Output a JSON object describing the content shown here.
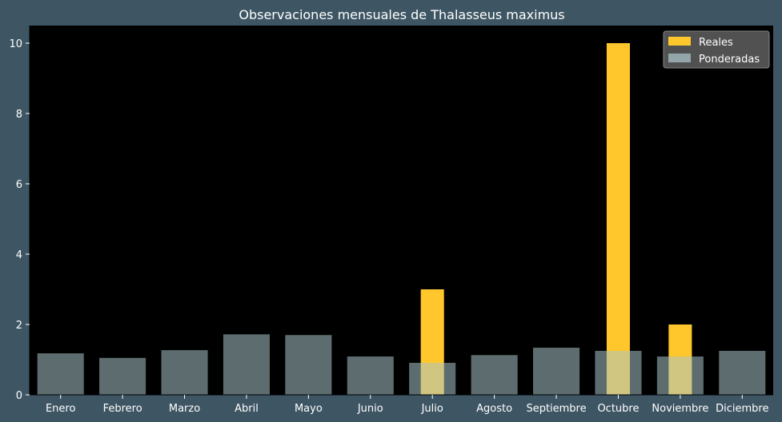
{
  "chart_data": {
    "type": "bar",
    "title": "Observaciones mensuales de Thalasseus maximus",
    "xlabel": "",
    "ylabel": "",
    "categories": [
      "Enero",
      "Febrero",
      "Marzo",
      "Abril",
      "Mayo",
      "Junio",
      "Julio",
      "Agosto",
      "Septiembre",
      "Octubre",
      "Noviembre",
      "Diciembre"
    ],
    "series": [
      {
        "name": "Reales",
        "color": "#ffc72c",
        "values": [
          0,
          0,
          0,
          0,
          0,
          0,
          3,
          0,
          0,
          10,
          2,
          0
        ]
      },
      {
        "name": "Ponderadas",
        "color": "#a9c4c8",
        "opacity": 0.55,
        "values": [
          1.18,
          1.05,
          1.27,
          1.72,
          1.7,
          1.09,
          0.91,
          1.13,
          1.34,
          1.25,
          1.09,
          1.25
        ]
      }
    ],
    "ylim": [
      0,
      10.5
    ],
    "yticks": [
      0,
      2,
      4,
      6,
      8,
      10
    ],
    "grid": false,
    "legend_position": "top-right",
    "colors": {
      "figure_background": "#3e5664",
      "plot_background": "#000000",
      "text": "#ffffff",
      "legend_background": "#555555"
    }
  }
}
